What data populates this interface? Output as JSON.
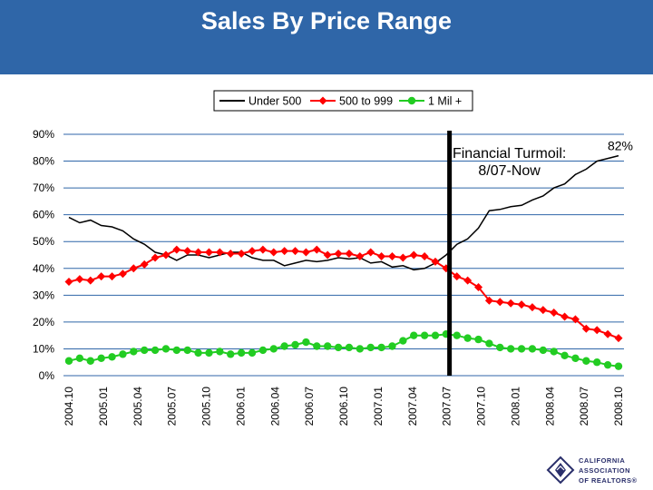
{
  "header": {
    "title": "Sales By Price Range"
  },
  "colors": {
    "header_bg": "#2f66a8",
    "grid": "#2f66a8",
    "under_500": "#000000",
    "mid": "#ff0000",
    "high": "#22cc22",
    "logo": "#2a2f6b"
  },
  "logo": {
    "lines": [
      "CALIFORNIA",
      "ASSOCIATION",
      "OF REALTORS®"
    ]
  },
  "chart_data": {
    "type": "line",
    "title": "",
    "xlabel": "",
    "ylabel": "",
    "ylim": [
      0,
      90
    ],
    "y_ticks": [
      "0%",
      "10%",
      "20%",
      "30%",
      "40%",
      "50%",
      "60%",
      "70%",
      "80%",
      "90%"
    ],
    "x_tick_labels": [
      "2004.10",
      "2005.01",
      "2005.04",
      "2005.07",
      "2005.10",
      "2006.01",
      "2006.04",
      "2006.07",
      "2006.10",
      "2007.01",
      "2007.04",
      "2007.07",
      "2007.10",
      "2008.01",
      "2008.04",
      "2008.07",
      "2008.10"
    ],
    "legend": {
      "placement": "top",
      "entries": [
        "Under 500",
        "500 to 999",
        "1 Mil +"
      ]
    },
    "grid": true,
    "series": [
      {
        "name": "Under 500",
        "color": "#000000",
        "marker": "none",
        "values": [
          59,
          57,
          58,
          56,
          55.5,
          54,
          51,
          49,
          46,
          45,
          43,
          45,
          45,
          44,
          45,
          46,
          46,
          44,
          43,
          43,
          41,
          42,
          43,
          42.5,
          43,
          44,
          43.5,
          44,
          42,
          42.5,
          40.5,
          41,
          39.5,
          40,
          42,
          45,
          49,
          51,
          55,
          61.5,
          62,
          63,
          63.5,
          65.5,
          67,
          70,
          71.5,
          75,
          77,
          80,
          81,
          82
        ]
      },
      {
        "name": "500 to 999",
        "color": "#ff0000",
        "marker": "diamond",
        "values": [
          35,
          36,
          35.5,
          37,
          37,
          38,
          40,
          41.5,
          44,
          45,
          47,
          46.5,
          46,
          46,
          46,
          45.5,
          45.5,
          46.5,
          47,
          46,
          46.5,
          46.5,
          46,
          47,
          45,
          45.5,
          45.5,
          44.5,
          46,
          44.5,
          44.5,
          44,
          45,
          44.5,
          42.5,
          40,
          37,
          35.5,
          33,
          28,
          27.5,
          27,
          26.5,
          25.5,
          24.5,
          23.5,
          22,
          21,
          17.5,
          17,
          15.5,
          14
        ]
      },
      {
        "name": "1 Mil +",
        "color": "#22cc22",
        "marker": "circle",
        "values": [
          5.5,
          6.5,
          5.5,
          6.5,
          7,
          8,
          9,
          9.5,
          9.5,
          10,
          9.5,
          9.5,
          8.5,
          8.5,
          9,
          8,
          8.5,
          8.5,
          9.5,
          10,
          11,
          11.5,
          12.5,
          11,
          11,
          10.5,
          10.5,
          10,
          10.5,
          10.5,
          11,
          13,
          15,
          15,
          15,
          15.5,
          15,
          14,
          13.5,
          12,
          10.5,
          10,
          10,
          10,
          9.5,
          9,
          7.5,
          6.5,
          5.5,
          5,
          4,
          3.5
        ]
      }
    ],
    "annotations": [
      {
        "text_lines": [
          "Financial Turmoil:",
          "8/07-Now"
        ],
        "marker_line_after_tick": "2007.07"
      },
      {
        "text": "82%"
      }
    ]
  }
}
